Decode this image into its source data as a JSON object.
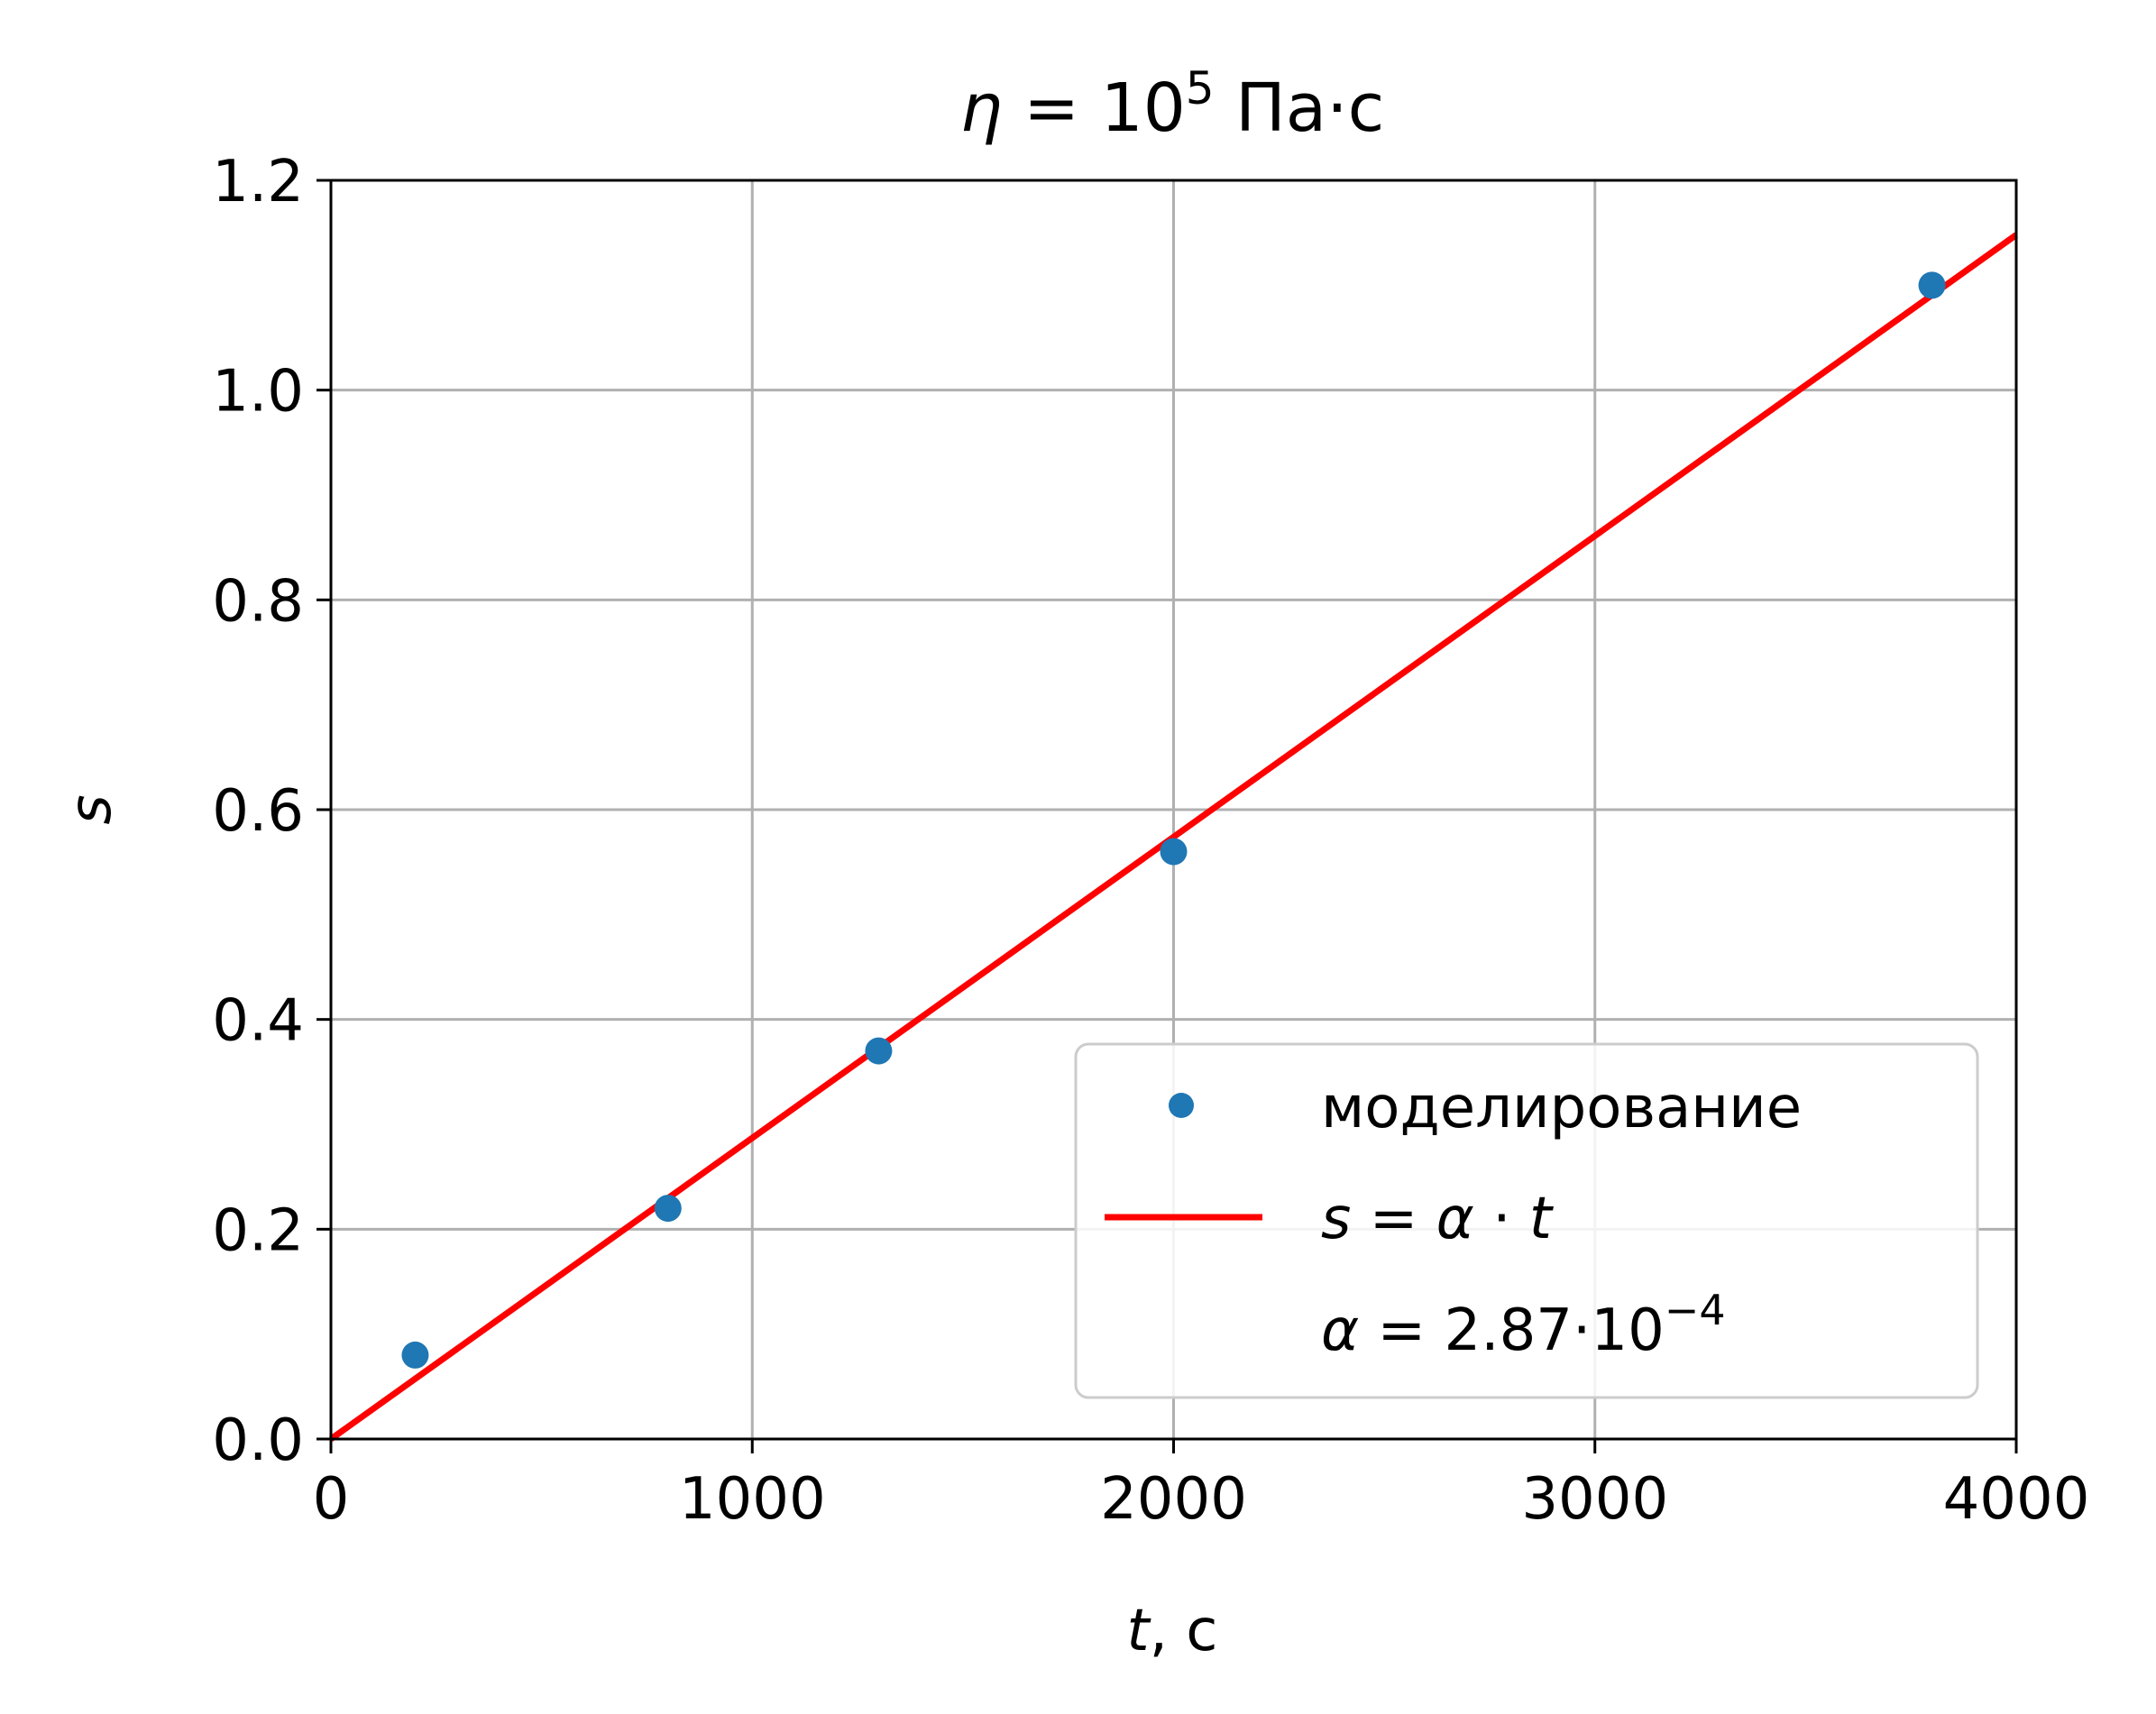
{
  "chart_data": {
    "type": "scatter",
    "title": {
      "symbol": "η",
      "equals": " = ",
      "base": "10",
      "exponent": "5",
      "unit": " Па·с"
    },
    "xlabel": {
      "var": "t",
      "unit": ", с"
    },
    "ylabel": "s",
    "xlim": [
      0,
      4000
    ],
    "ylim": [
      0,
      1.2
    ],
    "xticks": [
      "0",
      "1000",
      "2000",
      "3000",
      "4000"
    ],
    "yticks": [
      "0.0",
      "0.2",
      "0.4",
      "0.6",
      "0.8",
      "1.0",
      "1.2"
    ],
    "grid": true,
    "legend_position": "lower-right",
    "series": [
      {
        "name": "моделирование",
        "kind": "points",
        "color": "#1f77b4",
        "points": [
          {
            "x": 200,
            "y": 0.08
          },
          {
            "x": 800,
            "y": 0.22
          },
          {
            "x": 1300,
            "y": 0.37
          },
          {
            "x": 2000,
            "y": 0.56
          },
          {
            "x": 3800,
            "y": 1.1
          }
        ]
      },
      {
        "name": "s = α · t",
        "kind": "line",
        "color": "#ff0000",
        "slope": 0.000287,
        "x_range": [
          0,
          4000
        ]
      }
    ],
    "legend": {
      "scatter_label": "моделирование",
      "fit_label": {
        "lhs": "s",
        "eq": " = ",
        "a": "α",
        "dot": " · ",
        "rhs": "t"
      },
      "alpha_label": {
        "sym": "α",
        "text": " = 2.87·10",
        "exp": "−4"
      }
    }
  }
}
